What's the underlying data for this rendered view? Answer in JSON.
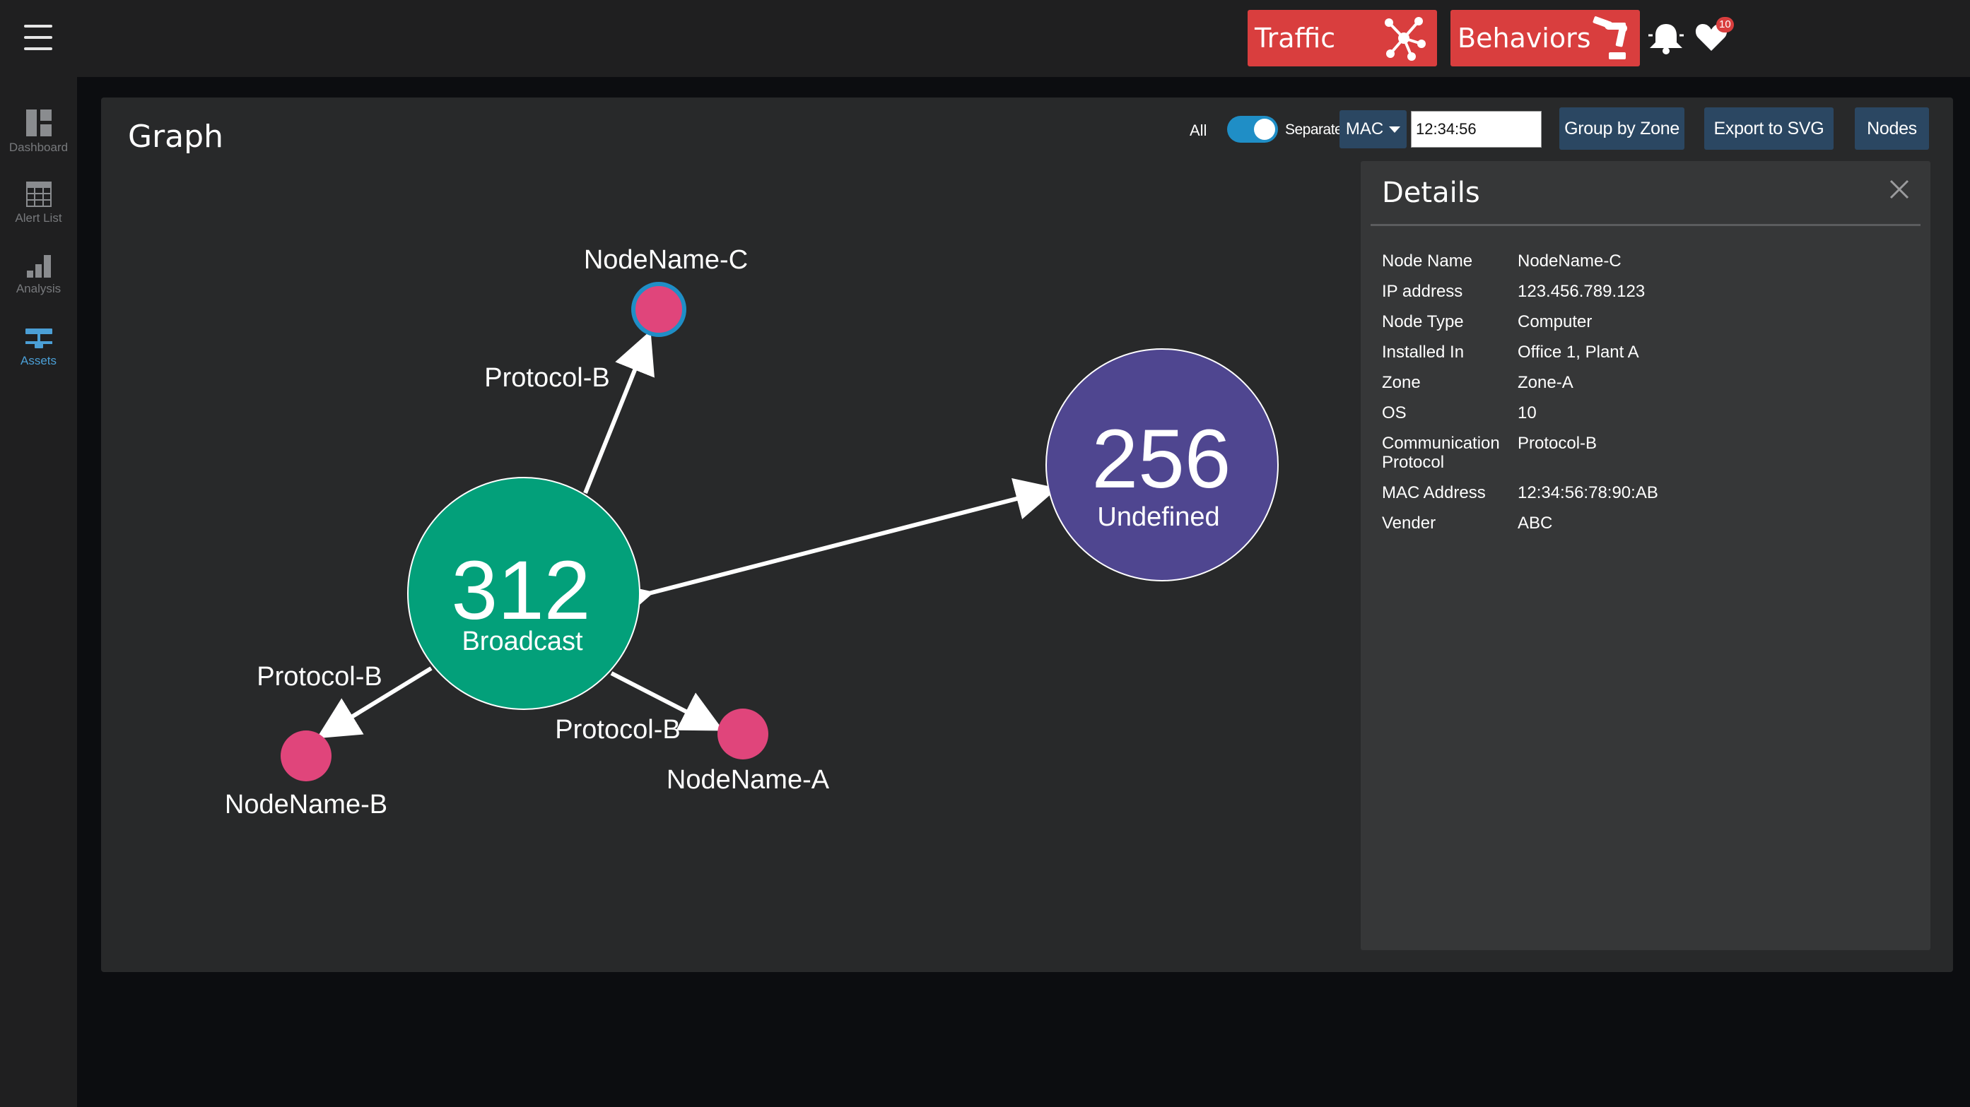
{
  "topbar": {
    "traffic_label": "Traffic",
    "behaviors_label": "Behaviors",
    "notification_count": "10",
    "accent_color": "#d93e3e"
  },
  "sidebar": {
    "items": [
      {
        "label": "Dashboard",
        "icon": "dashboard-icon",
        "active": false
      },
      {
        "label": "Alert List",
        "icon": "table-icon",
        "active": false
      },
      {
        "label": "Analysis",
        "icon": "bar-chart-icon",
        "active": false
      },
      {
        "label": "Assets",
        "icon": "network-icon",
        "active": true
      }
    ],
    "active_color": "#4b9fd6"
  },
  "panel": {
    "title": "Graph",
    "controls": {
      "all_label": "All",
      "separate_label": "Separate",
      "toggle_on": true,
      "mac_select": "MAC",
      "mac_value": "12:34:56",
      "group_by_zone": "Group by Zone",
      "export_svg": "Export to SVG",
      "nodes": "Nodes"
    }
  },
  "graph": {
    "nodes": [
      {
        "id": "broadcast",
        "count": "312",
        "label": "Broadcast",
        "color": "#03a07a"
      },
      {
        "id": "undefined",
        "count": "256",
        "label": "Undefined",
        "color": "#4f4690"
      },
      {
        "id": "c",
        "label": "NodeName-C",
        "color": "#e0457b",
        "selected": true
      },
      {
        "id": "b",
        "label": "NodeName-B",
        "color": "#e0457b"
      },
      {
        "id": "a",
        "label": "NodeName-A",
        "color": "#e0457b"
      }
    ],
    "edges": [
      {
        "from": "broadcast",
        "to": "c",
        "label": "Protocol-B"
      },
      {
        "from": "broadcast",
        "to": "b",
        "label": "Protocol-B"
      },
      {
        "from": "broadcast",
        "to": "a",
        "label": "Protocol-B"
      },
      {
        "from": "broadcast",
        "to": "undefined",
        "label": ""
      }
    ]
  },
  "details": {
    "title": "Details",
    "rows": [
      {
        "key": "Node Name",
        "value": "NodeName-C"
      },
      {
        "key": "IP address",
        "value": "123.456.789.123"
      },
      {
        "key": "Node Type",
        "value": "Computer"
      },
      {
        "key": "Installed In",
        "value": "Office 1, Plant A"
      },
      {
        "key": "Zone",
        "value": "Zone-A"
      },
      {
        "key": "OS",
        "value": "10"
      },
      {
        "key": "Communication Protocol",
        "value": "Protocol-B"
      },
      {
        "key": "MAC Address",
        "value": "12:34:56:78:90:AB"
      },
      {
        "key": "Vender",
        "value": "ABC"
      }
    ]
  }
}
